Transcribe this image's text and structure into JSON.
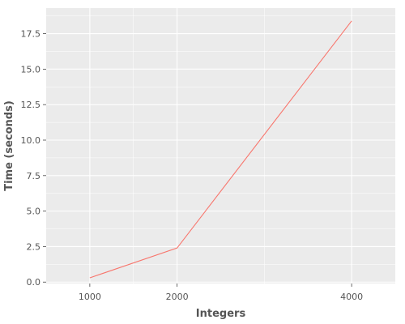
{
  "chart_data": {
    "type": "line",
    "title": "",
    "xlabel": "Integers",
    "ylabel": "Time (seconds)",
    "x": [
      1000,
      2000,
      4000
    ],
    "series": [
      {
        "values": [
          0.3,
          2.4,
          18.4
        ]
      }
    ],
    "x_ticks": [
      1000,
      2000,
      4000
    ],
    "x_tick_labels": [
      "1000",
      "2000",
      "4000"
    ],
    "y_ticks": [
      0.0,
      2.5,
      5.0,
      7.5,
      10.0,
      12.5,
      15.0,
      17.5
    ],
    "y_tick_labels": [
      "0.0",
      "2.5",
      "5.0",
      "7.5",
      "10.0",
      "12.5",
      "15.0",
      "17.5"
    ],
    "xlim": [
      500,
      4500
    ],
    "ylim": [
      -0.1,
      19.3
    ],
    "grid": true,
    "legend": "none",
    "colors": {
      "background": "#ebebeb",
      "grid": "#ffffff",
      "line": "#f8766d"
    }
  }
}
